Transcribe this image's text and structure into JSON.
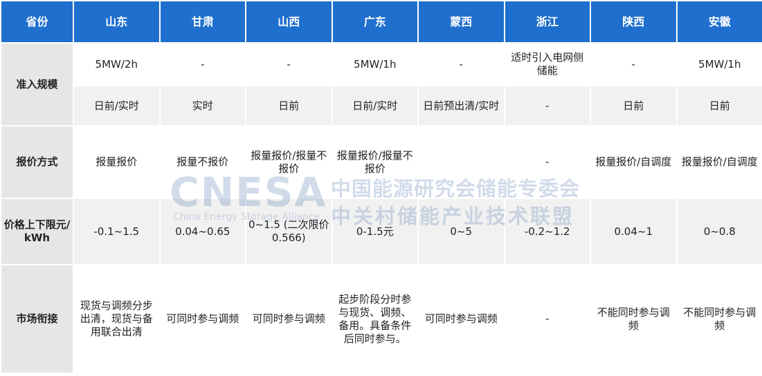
{
  "table": {
    "header": [
      "省份",
      "山东",
      "甘肃",
      "山西",
      "广东",
      "蒙西",
      "浙江",
      "陕西",
      "安徽"
    ],
    "sections": [
      {
        "label": "准入规模",
        "rows": [
          [
            "5MW/2h",
            "-",
            "-",
            "5MW/1h",
            "-",
            "适时引入电网侧储能",
            "-",
            "5MW/1h"
          ],
          [
            "日前/实时",
            "实时",
            "日前",
            "日前/实时",
            "日前预出清/实时",
            "-",
            "日前",
            "日前"
          ]
        ]
      },
      {
        "label": "报价方式",
        "rows": [
          [
            "报量报价",
            "报量不报价",
            "报量报价/报量不报价",
            "报量报价/报量不报价",
            "",
            "-",
            "报量报价/自调度",
            "报量报价/自调度"
          ]
        ]
      },
      {
        "label": "价格上下限元/kWh",
        "rows": [
          [
            "-0.1~1.5",
            "0.04~0.65",
            "0~1.5 (二次限价0.566)",
            "0-1.5元",
            "0~5",
            "-0.2~1.2",
            "0.04~1",
            "0~0.8"
          ]
        ]
      },
      {
        "label": "市场衔接",
        "rows": [
          [
            "现货与调频分步出清，现货与备用联合出清",
            "可同时参与调频",
            "可同时参与调频",
            "起步阶段分时参与现货、调频、备用。具备条件后同时参与。",
            "可同时参与调频",
            "-",
            "不能同时参与调频",
            "不能同时参与调频"
          ]
        ]
      }
    ]
  },
  "watermark": {
    "logo": "CNESA",
    "subtitle": "China Energy Storage Alliance",
    "line1": "中国能源研究会储能专委会",
    "line2": "中关村储能产业技术联盟"
  }
}
